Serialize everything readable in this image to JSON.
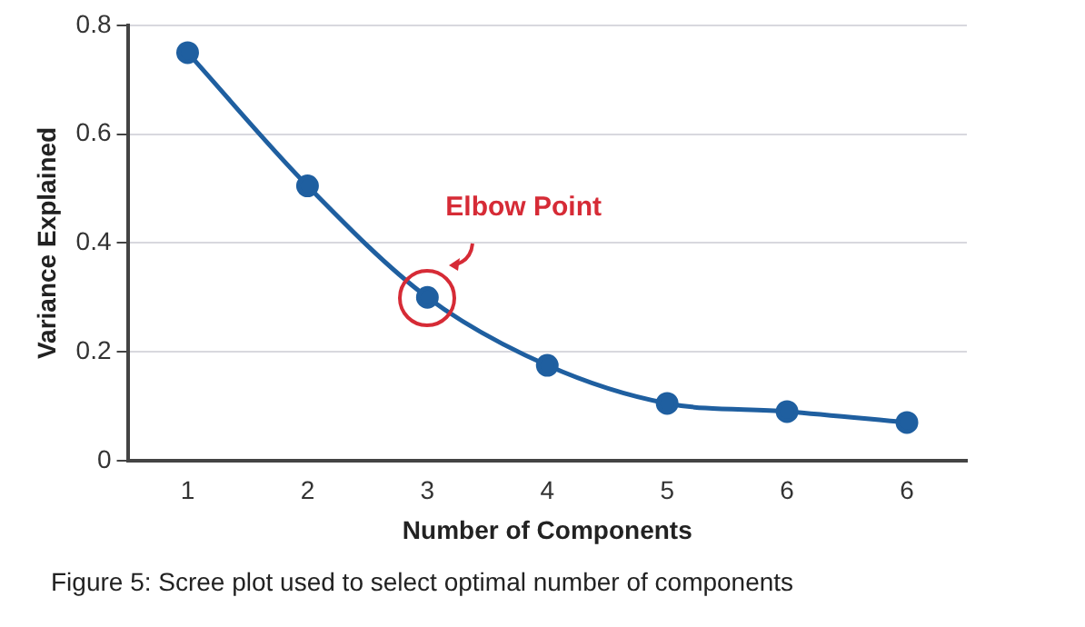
{
  "chart_data": {
    "type": "line",
    "xlabel": "Number of Components",
    "ylabel": "Variance Explained",
    "categories": [
      "1",
      "2",
      "3",
      "4",
      "5",
      "6",
      "6"
    ],
    "series": [
      {
        "color": "#1f5fa0",
        "values": [
          0.75,
          0.505,
          0.3,
          0.175,
          0.105,
          0.09,
          0.07
        ]
      }
    ],
    "ylim": [
      0,
      0.8
    ],
    "yticks": [
      0,
      0.2,
      0.4,
      0.6,
      0.8
    ],
    "grid": "y",
    "legend": false,
    "marker": "circle",
    "line_style": "solid",
    "annotations": [
      {
        "text": "Elbow Point",
        "x": "3",
        "y": 0.3
      },
      "Figure 5: Scree plot used to select optimal number of components"
    ]
  }
}
